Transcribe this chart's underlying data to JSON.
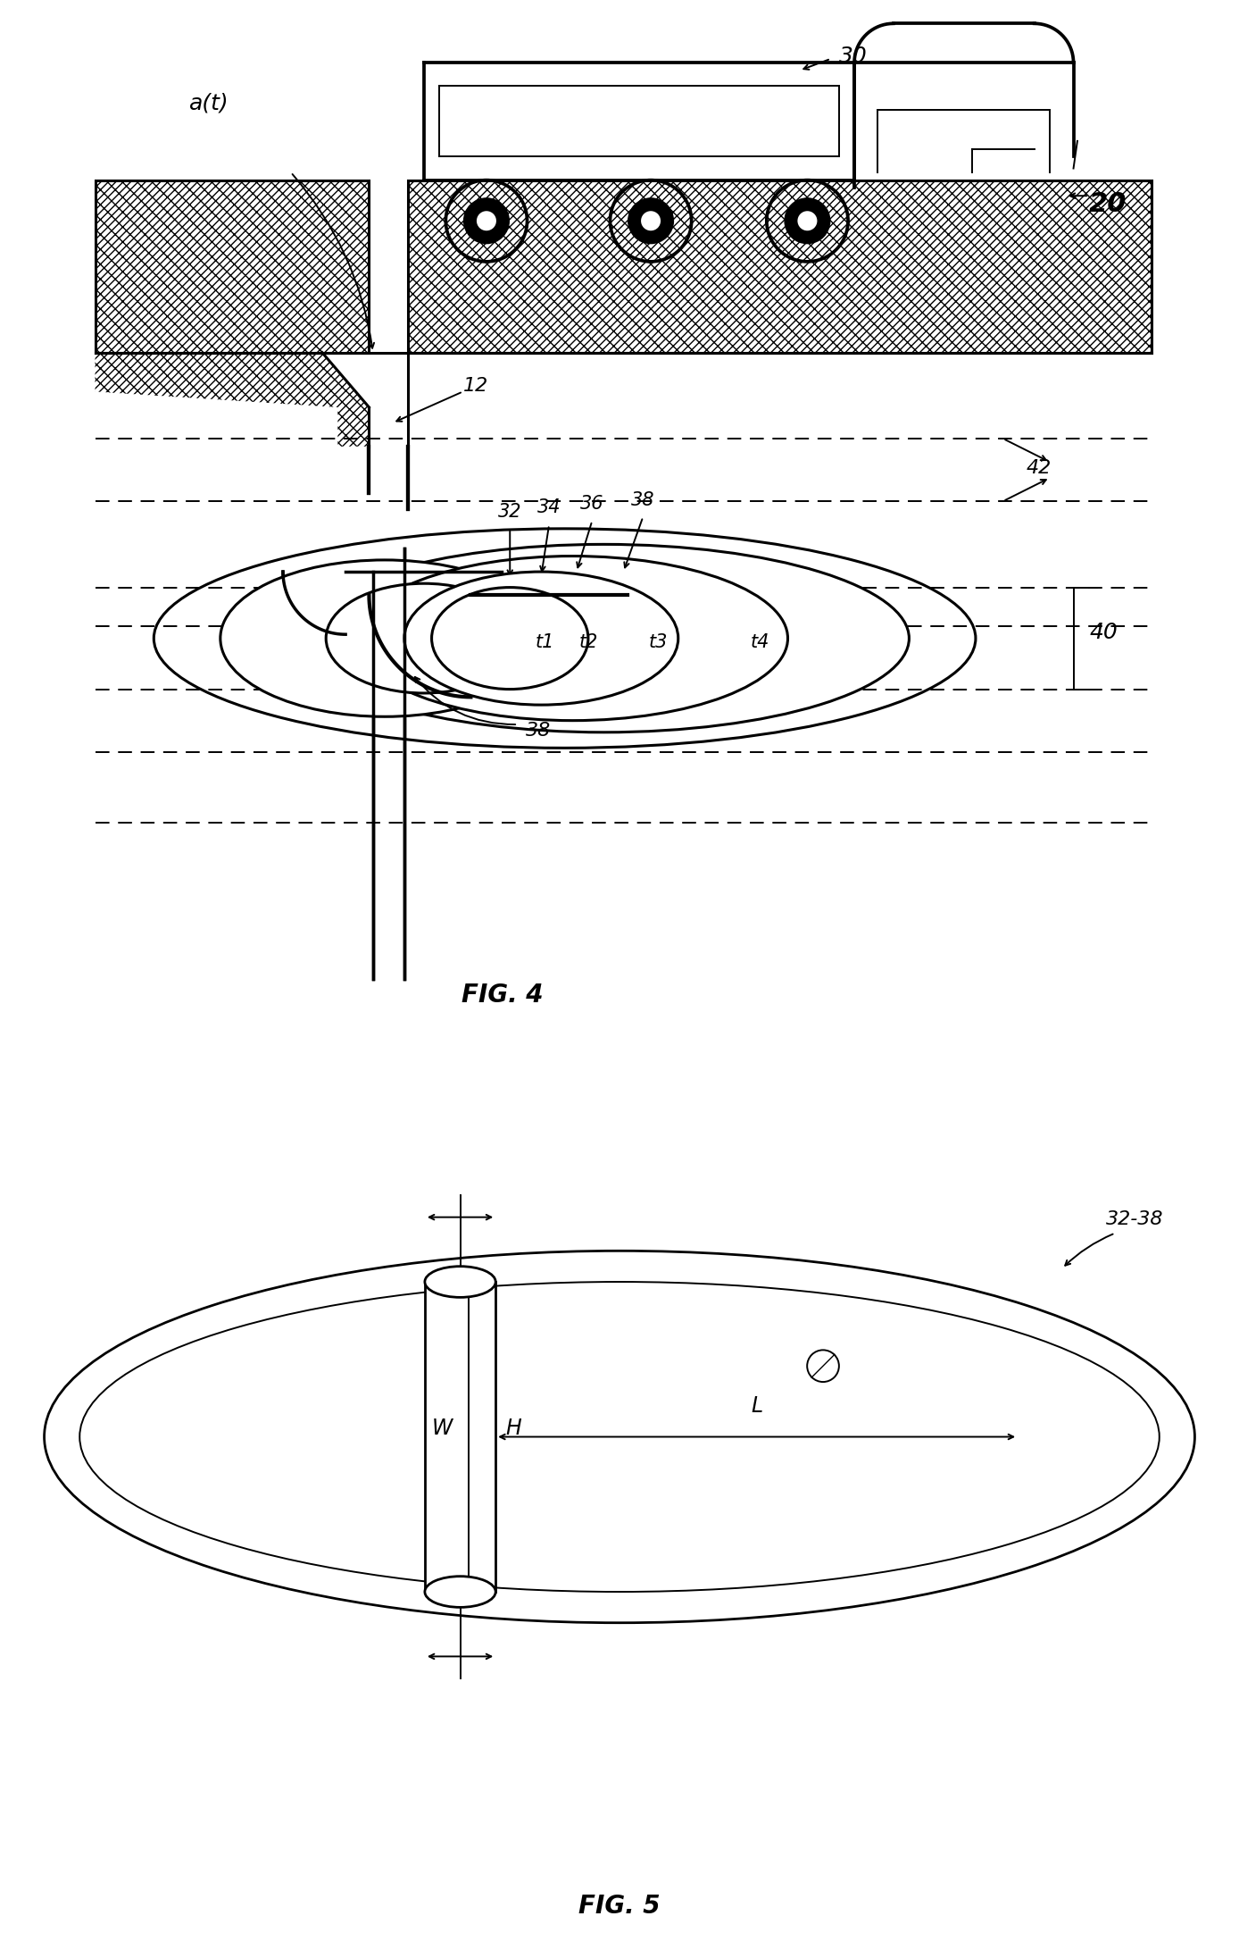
{
  "fig4_title": "FIG. 4",
  "fig5_title": "FIG. 5",
  "background_color": "#ffffff",
  "labels": {
    "at": "a(t)",
    "num30": "30",
    "num12": "12",
    "num20": "20",
    "num32": "32",
    "num34": "34",
    "num36": "36",
    "num38": "38",
    "num40": "40",
    "num42": "42",
    "t1": "t1",
    "t2": "t2",
    "t3": "t3",
    "t4": "t4",
    "W": "W",
    "H": "H",
    "L": "L",
    "num3238": "32-38"
  }
}
